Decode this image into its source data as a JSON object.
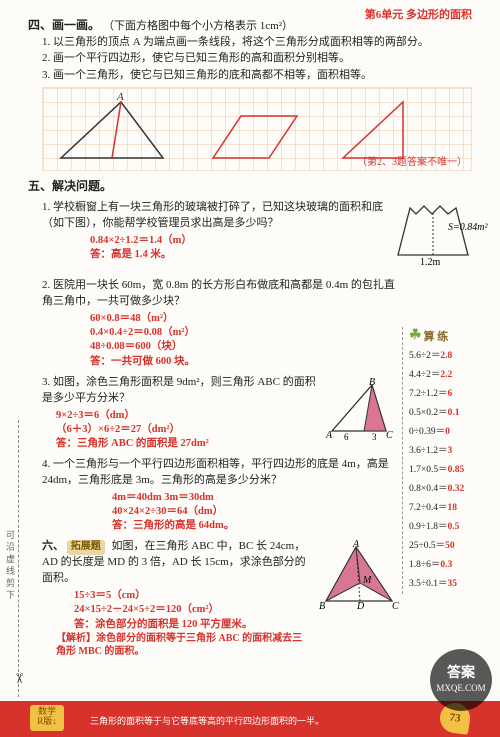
{
  "unit_header": "第6单元  多边形的面积",
  "section4": {
    "title": "四、画一画。",
    "title_note": "（下面方格图中每个小方格表示 1cm²）",
    "q1": "1. 以三角形的顶点 A 为端点画一条线段，将这个三角形分成面积相等的两部分。",
    "q2": "2. 画一个平行四边形，使它与已知三角形的高和面积分别相等。",
    "q3": "3. 画一个三角形，使它与已知三角形的底和高都不相等，面积相等。",
    "grid_note": "（第2、3题答案不唯一）"
  },
  "section5": {
    "title": "五、解决问题。",
    "q1": {
      "text": "1. 学校橱窗上有一块三角形的玻璃被打碎了，已知这块玻璃的面积和底（如下图），你能帮学校管理员求出高是多少吗？",
      "calc1": "0.84×2÷1.2＝1.4（m）",
      "calc2": "答：高是 1.4 米。",
      "base_label": "1.2m",
      "area_label": "S=0.84m²"
    },
    "q2": {
      "text": "2. 医院用一块长 60m，宽 0.8m 的长方形白布做底和高都是 0.4m 的包扎直角三角巾，一共可做多少块？",
      "c1": "60×0.8＝48（m²）",
      "c2": "0.4×0.4÷2＝0.08（m²）",
      "c3": "48÷0.08＝600（块）",
      "c4": "答：一共可做 600 块。"
    },
    "q3": {
      "text": "3. 如图，涂色三角形面积是 9dm²，则三角形 ABC 的面积是多少平方分米？",
      "c1": "9×2÷3＝6（dm）",
      "c2": "（6＋3）×6÷2＝27（dm²）",
      "c3": "答：三角形 ABC 的面积是 27dm²"
    },
    "q4": {
      "text": "4. 一个三角形与一个平行四边形面积相等，平行四边形的底是 4m，高是24dm，三角形底是 3m。三角形的高是多少分米？",
      "c1": "4m＝40dm   3m＝30dm",
      "c2": "40×24×2÷30＝64（dm）",
      "c3": "答：三角形的高是 64dm。"
    }
  },
  "section6": {
    "label": "拓展题",
    "title_prefix": "六、",
    "text": " 如图，在三角形 ABC 中，BC 长 24cm，AD 的长度是 MD 的 3 倍，AD 长 15cm，求涂色部分的面积。",
    "c1": "15÷3＝5（cm）",
    "c2": "24×15÷2－24×5÷2＝120（cm²）",
    "c3": "答：涂色部分的面积是 120 平方厘米。",
    "c4": "【解析】涂色部分的面积等于三角形 ABC 的面积减去三角形 MBC 的面积。"
  },
  "sidebar": {
    "title": "算 练",
    "items": [
      {
        "lhs": "5.6÷2＝",
        "rhs": "2.8"
      },
      {
        "lhs": "4.4÷2＝",
        "rhs": "2.2"
      },
      {
        "lhs": "7.2÷1.2＝",
        "rhs": "6"
      },
      {
        "lhs": "0.5×0.2＝",
        "rhs": "0.1"
      },
      {
        "lhs": "0÷0.39＝",
        "rhs": "0"
      },
      {
        "lhs": "3.6÷1.2＝",
        "rhs": "3"
      },
      {
        "lhs": "1.7×0.5＝",
        "rhs": "0.85"
      },
      {
        "lhs": "0.8×0.4＝",
        "rhs": "0.32"
      },
      {
        "lhs": "7.2÷0.4＝",
        "rhs": "18"
      },
      {
        "lhs": "0.9÷1.8＝",
        "rhs": "0.5"
      },
      {
        "lhs": "25÷0.5＝",
        "rhs": "50"
      },
      {
        "lhs": "1.8÷6＝",
        "rhs": "0.3"
      },
      {
        "lhs": "3.5÷0.1＝",
        "rhs": "35"
      }
    ]
  },
  "footer": {
    "tip": "三角形的面积等于与它等底等高的平行四边形面积的一半。",
    "page": "73",
    "badge": "数学\nR版↓"
  },
  "side_label": "可沿虚线剪下",
  "watermark": {
    "l1": "答案",
    "l2": "MXQE.COM"
  }
}
